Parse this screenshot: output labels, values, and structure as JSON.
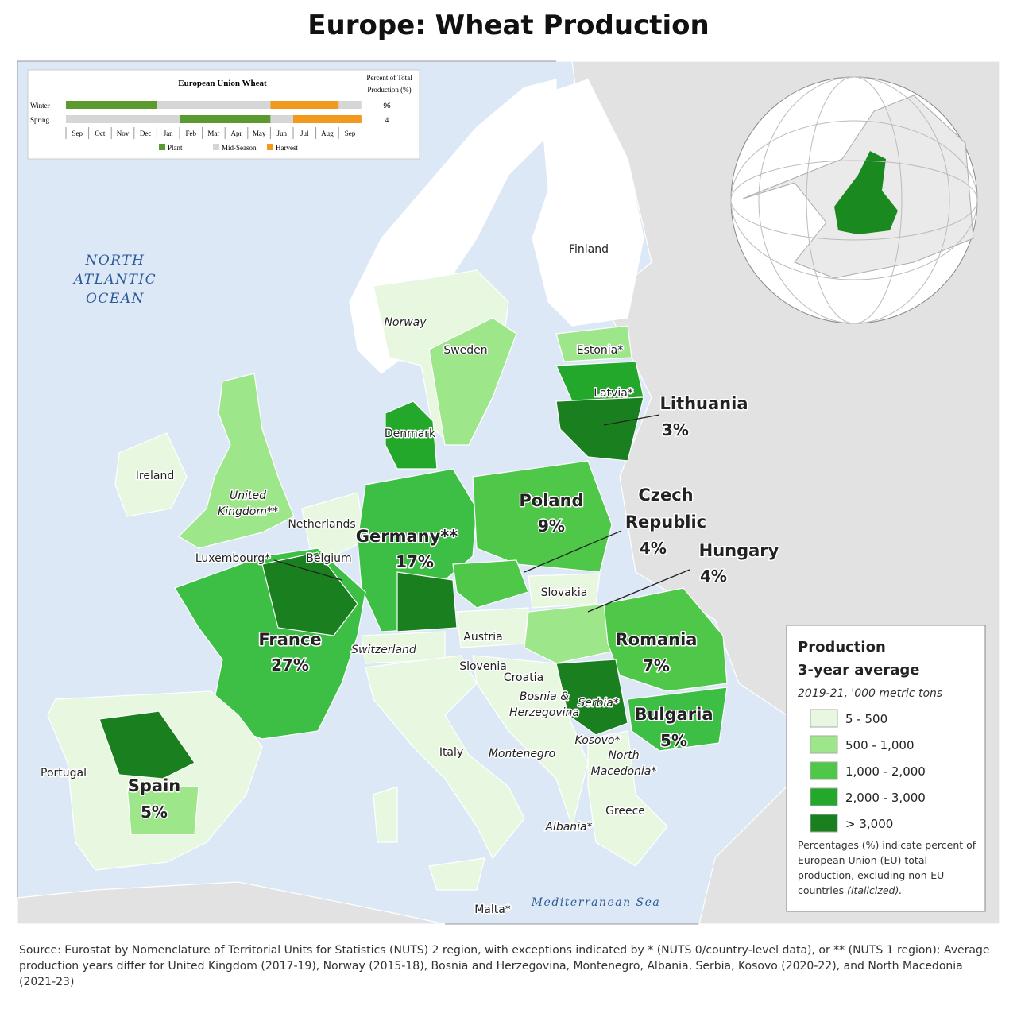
{
  "header": {
    "title": "Europe: Wheat Production"
  },
  "calendar": {
    "title": "European Union Wheat",
    "percent_header": [
      "Percent of Total",
      "Production (%)"
    ],
    "rows": [
      {
        "name": "Winter",
        "percent": "96"
      },
      {
        "name": "Spring",
        "percent": "4"
      }
    ],
    "months": [
      "Sep",
      "Oct",
      "Nov",
      "Dec",
      "Jan",
      "Feb",
      "Mar",
      "Apr",
      "May",
      "Jun",
      "Jul",
      "Aug",
      "Sep"
    ],
    "legend": [
      "Plant",
      "Mid-Season",
      "Harvest"
    ]
  },
  "ocean_labels": {
    "atlantic": [
      "NORTH",
      "ATLANTIC",
      "OCEAN"
    ],
    "mediterranean": "Mediterranean Sea"
  },
  "countries": [
    {
      "lines": [
        "Finland"
      ]
    },
    {
      "lines": [
        "Norway"
      ]
    },
    {
      "lines": [
        "Sweden"
      ]
    },
    {
      "lines": [
        "Estonia*"
      ]
    },
    {
      "lines": [
        "Latvia*"
      ]
    },
    {
      "lines": [
        "Lithuania"
      ],
      "share": "3%"
    },
    {
      "lines": [
        "Denmark"
      ]
    },
    {
      "lines": [
        "Ireland"
      ]
    },
    {
      "lines": [
        "United",
        "Kingdom**"
      ]
    },
    {
      "lines": [
        "Netherlands"
      ]
    },
    {
      "lines": [
        "Germany**"
      ],
      "share": "17%"
    },
    {
      "lines": [
        "Poland"
      ],
      "share": "9%"
    },
    {
      "lines": [
        "Czech",
        "Republic"
      ],
      "share": "4%"
    },
    {
      "lines": [
        "Hungary"
      ],
      "share": "4%"
    },
    {
      "lines": [
        "Luxembourg*"
      ]
    },
    {
      "lines": [
        "Belgium"
      ]
    },
    {
      "lines": [
        "Slovakia"
      ]
    },
    {
      "lines": [
        "France"
      ],
      "share": "27%"
    },
    {
      "lines": [
        "Switzerland"
      ]
    },
    {
      "lines": [
        "Austria"
      ]
    },
    {
      "lines": [
        "Romania"
      ],
      "share": "7%"
    },
    {
      "lines": [
        "Slovenia"
      ]
    },
    {
      "lines": [
        "Croatia"
      ]
    },
    {
      "lines": [
        "Bosnia &",
        "Herzegovina"
      ]
    },
    {
      "lines": [
        "Serbia*"
      ]
    },
    {
      "lines": [
        "Bulgaria"
      ],
      "share": "5%"
    },
    {
      "lines": [
        "Kosovo*"
      ]
    },
    {
      "lines": [
        "North",
        "Macedonia*"
      ]
    },
    {
      "lines": [
        "Montenegro"
      ]
    },
    {
      "lines": [
        "Italy"
      ]
    },
    {
      "lines": [
        "Portugal"
      ]
    },
    {
      "lines": [
        "Spain"
      ],
      "share": "5%"
    },
    {
      "lines": [
        "Albania*"
      ]
    },
    {
      "lines": [
        "Greece"
      ]
    },
    {
      "lines": [
        "Malta*"
      ]
    }
  ],
  "legend": {
    "title": "Production",
    "subtitle": "3-year average",
    "units": "2019-21, '000 metric tons",
    "classes": [
      "5 - 500",
      "500 - 1,000",
      "1,000 - 2,000",
      "2,000 - 3,000",
      "> 3,000"
    ],
    "note": "Percentages (%) indicate percent of European Union (EU) total production, excluding non-EU countries",
    "note_italic": "(italicized)."
  },
  "source": "Source: Eurostat by Nomenclature of Territorial Units for Statistics (NUTS) 2 region, with exceptions indicated by * (NUTS 0/country-level data), or ** (NUTS 1 region); Average production years differ for United Kingdom (2017-19), Norway (2015-18), Bosnia and Herzegovina, Montenegro, Albania, Serbia, Kosovo (2020-22), and North Macedonia (2021-23)"
}
